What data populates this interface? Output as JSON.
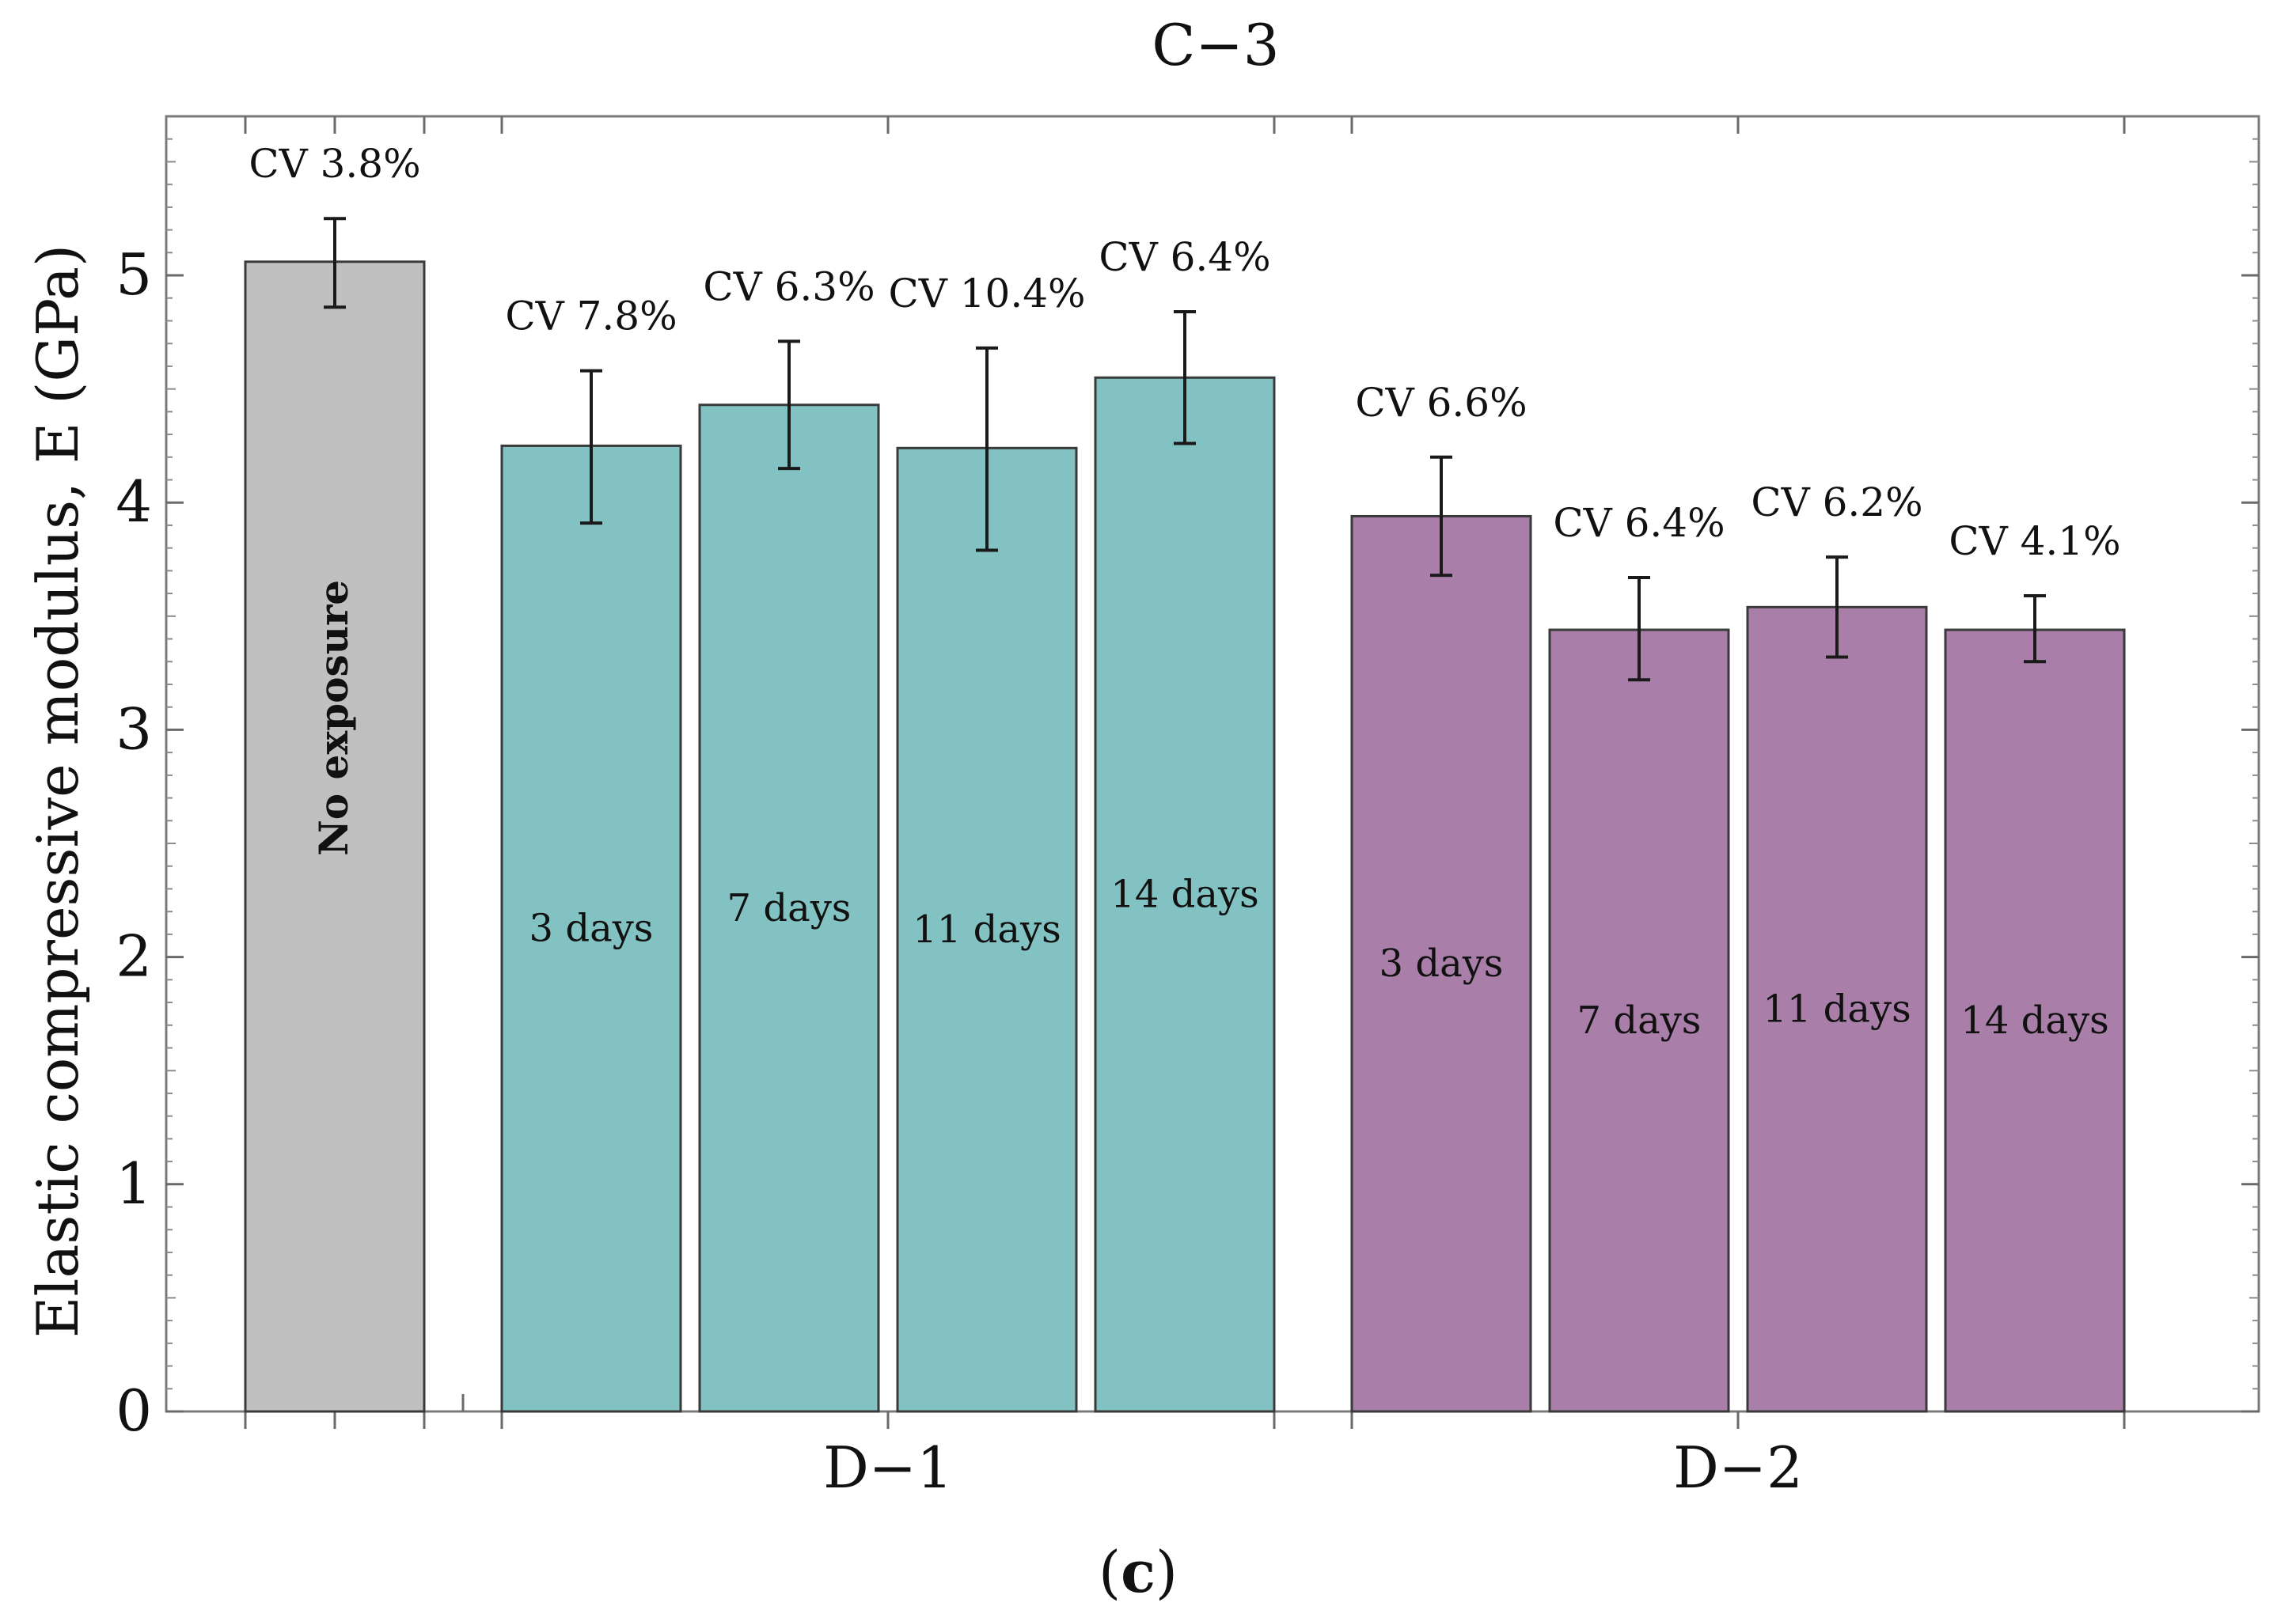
{
  "chart_data": {
    "type": "bar",
    "title": "C−3",
    "ylabel": "Elastic compressive modulus, E (GPa)",
    "ylim": [
      0,
      5.7
    ],
    "yticks": [
      0,
      1,
      2,
      3,
      4,
      5
    ],
    "groups": [
      "",
      "D−1",
      "D−2"
    ],
    "caption": {
      "open": "(",
      "letter": "c",
      "close": ")"
    },
    "colors": {
      "none": "#c0c0c0",
      "D-1": "#82c2c3",
      "D-2": "#a97fa9"
    },
    "bars": [
      {
        "group": 0,
        "label": "No exposure",
        "value": 5.06,
        "err_low": 4.86,
        "err_high": 5.25,
        "cv": "CV 3.8%",
        "color": "#c0c0c0"
      },
      {
        "group": 1,
        "label": "3 days",
        "value": 4.25,
        "err_low": 3.91,
        "err_high": 4.58,
        "cv": "CV 7.8%",
        "color": "#82c2c3"
      },
      {
        "group": 1,
        "label": "7 days",
        "value": 4.43,
        "err_low": 4.15,
        "err_high": 4.71,
        "cv": "CV 6.3%",
        "color": "#82c2c3"
      },
      {
        "group": 1,
        "label": "11 days",
        "value": 4.24,
        "err_low": 3.79,
        "err_high": 4.68,
        "cv": "CV 10.4%",
        "color": "#82c2c3"
      },
      {
        "group": 1,
        "label": "14 days",
        "value": 4.55,
        "err_low": 4.26,
        "err_high": 4.84,
        "cv": "CV 6.4%",
        "color": "#82c2c3"
      },
      {
        "group": 2,
        "label": "3 days",
        "value": 3.94,
        "err_low": 3.68,
        "err_high": 4.2,
        "cv": "CV 6.6%",
        "color": "#a97fa9"
      },
      {
        "group": 2,
        "label": "7 days",
        "value": 3.44,
        "err_low": 3.22,
        "err_high": 3.67,
        "cv": "CV 6.4%",
        "color": "#a97fa9"
      },
      {
        "group": 2,
        "label": "11 days",
        "value": 3.54,
        "err_low": 3.32,
        "err_high": 3.76,
        "cv": "CV 6.2%",
        "color": "#a97fa9"
      },
      {
        "group": 2,
        "label": "14 days",
        "value": 3.44,
        "err_low": 3.3,
        "err_high": 3.59,
        "cv": "CV 4.1%",
        "color": "#a97fa9"
      }
    ]
  }
}
